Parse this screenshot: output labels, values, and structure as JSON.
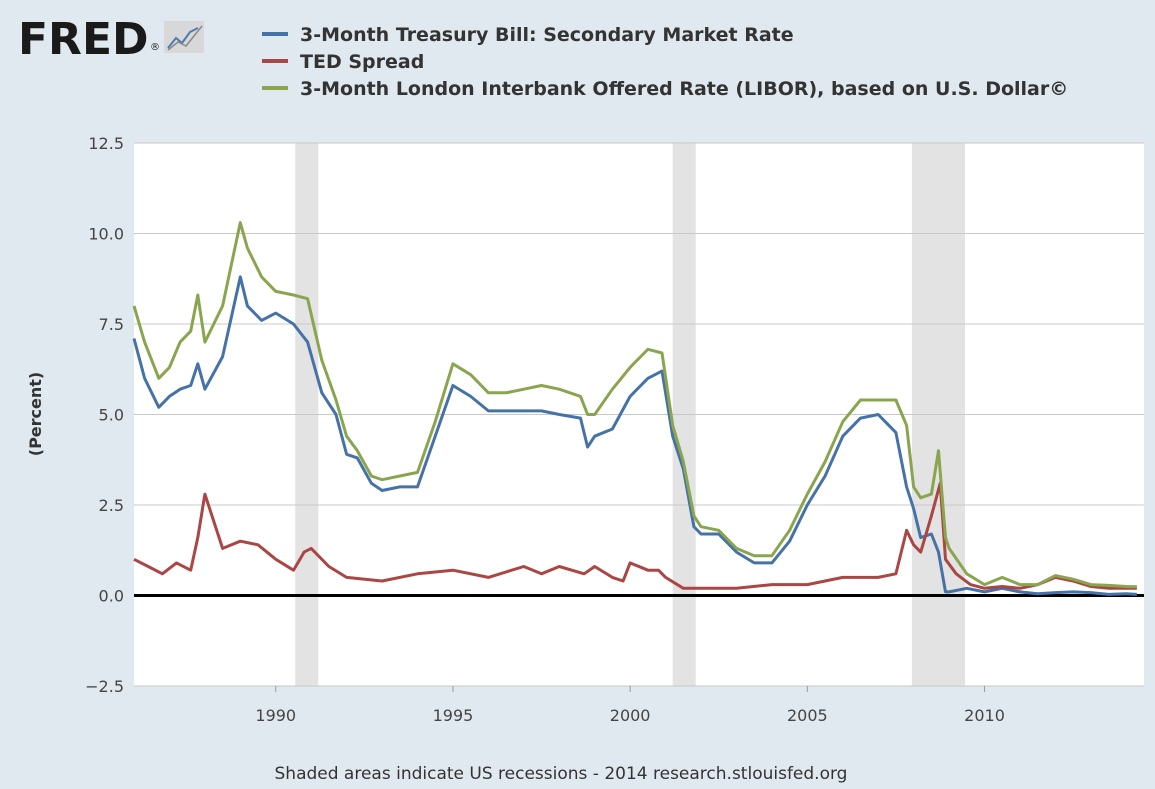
{
  "logo": {
    "text": "FRED",
    "registered": "®"
  },
  "footer": {
    "note": "Shaded areas indicate US recessions - 2014 research.stlouisfed.org"
  },
  "chart_data": {
    "type": "line",
    "ylabel": "(Percent)",
    "xlabel": "",
    "xlim": [
      1986.0,
      2014.5
    ],
    "ylim": [
      -2.5,
      12.5
    ],
    "yticks": [
      -2.5,
      0.0,
      2.5,
      5.0,
      7.5,
      10.0,
      12.5
    ],
    "ytick_labels": [
      "−2.5",
      "0.0",
      "2.5",
      "5.0",
      "7.5",
      "10.0",
      "12.5"
    ],
    "xticks": [
      1990,
      1995,
      2000,
      2005,
      2010
    ],
    "xtick_labels": [
      "1990",
      "1995",
      "2000",
      "2005",
      "2010"
    ],
    "grid": true,
    "legend_position": "top",
    "recessions": [
      [
        1990.55,
        1991.2
      ],
      [
        2001.2,
        2001.85
      ],
      [
        2007.95,
        2009.45
      ]
    ],
    "series": [
      {
        "name": "3-Month Treasury Bill: Secondary Market Rate",
        "color": "#4572a7",
        "x": [
          1986.0,
          1986.3,
          1986.7,
          1987.0,
          1987.3,
          1987.6,
          1987.8,
          1988.0,
          1988.5,
          1989.0,
          1989.2,
          1989.6,
          1990.0,
          1990.5,
          1990.9,
          1991.3,
          1991.7,
          1992.0,
          1992.3,
          1992.7,
          1993.0,
          1993.5,
          1994.0,
          1994.5,
          1995.0,
          1995.5,
          1996.0,
          1996.5,
          1997.0,
          1997.5,
          1998.0,
          1998.6,
          1998.8,
          1999.0,
          1999.5,
          2000.0,
          2000.5,
          2000.9,
          2001.2,
          2001.5,
          2001.8,
          2002.0,
          2002.5,
          2003.0,
          2003.5,
          2004.0,
          2004.5,
          2005.0,
          2005.5,
          2006.0,
          2006.5,
          2007.0,
          2007.5,
          2007.8,
          2008.0,
          2008.2,
          2008.5,
          2008.7,
          2008.9,
          2009.0,
          2009.5,
          2010.0,
          2010.5,
          2011.0,
          2011.5,
          2012.0,
          2012.5,
          2013.0,
          2013.5,
          2014.0,
          2014.3
        ],
        "y": [
          7.1,
          6.0,
          5.2,
          5.5,
          5.7,
          5.8,
          6.4,
          5.7,
          6.6,
          8.8,
          8.0,
          7.6,
          7.8,
          7.5,
          7.0,
          5.6,
          5.0,
          3.9,
          3.8,
          3.1,
          2.9,
          3.0,
          3.0,
          4.4,
          5.8,
          5.5,
          5.1,
          5.1,
          5.1,
          5.1,
          5.0,
          4.9,
          4.1,
          4.4,
          4.6,
          5.5,
          6.0,
          6.2,
          4.4,
          3.5,
          1.9,
          1.7,
          1.7,
          1.2,
          0.9,
          0.9,
          1.5,
          2.5,
          3.3,
          4.4,
          4.9,
          5.0,
          4.5,
          3.0,
          2.4,
          1.6,
          1.7,
          1.2,
          0.1,
          0.1,
          0.2,
          0.1,
          0.2,
          0.1,
          0.05,
          0.08,
          0.1,
          0.08,
          0.03,
          0.05,
          0.03
        ]
      },
      {
        "name": "TED Spread",
        "color": "#aa4643",
        "x": [
          1986.0,
          1986.4,
          1986.8,
          1987.2,
          1987.6,
          1987.8,
          1988.0,
          1988.5,
          1989.0,
          1989.5,
          1990.0,
          1990.5,
          1990.8,
          1991.0,
          1991.5,
          1992.0,
          1993.0,
          1994.0,
          1995.0,
          1996.0,
          1997.0,
          1997.5,
          1998.0,
          1998.7,
          1999.0,
          1999.5,
          1999.8,
          2000.0,
          2000.5,
          2000.8,
          2001.0,
          2001.5,
          2002.0,
          2003.0,
          2004.0,
          2005.0,
          2006.0,
          2007.0,
          2007.5,
          2007.8,
          2008.0,
          2008.2,
          2008.5,
          2008.75,
          2008.9,
          2009.2,
          2009.6,
          2010.0,
          2010.5,
          2011.0,
          2011.5,
          2012.0,
          2012.5,
          2013.0,
          2013.5,
          2014.0,
          2014.3
        ],
        "y": [
          1.0,
          0.8,
          0.6,
          0.9,
          0.7,
          1.6,
          2.8,
          1.3,
          1.5,
          1.4,
          1.0,
          0.7,
          1.2,
          1.3,
          0.8,
          0.5,
          0.4,
          0.6,
          0.7,
          0.5,
          0.8,
          0.6,
          0.8,
          0.6,
          0.8,
          0.5,
          0.4,
          0.9,
          0.7,
          0.7,
          0.5,
          0.2,
          0.2,
          0.2,
          0.3,
          0.3,
          0.5,
          0.5,
          0.6,
          1.8,
          1.4,
          1.2,
          2.2,
          3.1,
          1.0,
          0.6,
          0.3,
          0.2,
          0.25,
          0.2,
          0.3,
          0.5,
          0.4,
          0.25,
          0.2,
          0.2,
          0.2
        ]
      },
      {
        "name": "3-Month London Interbank Offered Rate (LIBOR), based on U.S. Dollar©",
        "color": "#89a54e",
        "x": [
          1986.0,
          1986.3,
          1986.7,
          1987.0,
          1987.3,
          1987.6,
          1987.8,
          1988.0,
          1988.5,
          1989.0,
          1989.2,
          1989.6,
          1990.0,
          1990.5,
          1990.9,
          1991.3,
          1991.7,
          1992.0,
          1992.3,
          1992.7,
          1993.0,
          1993.5,
          1994.0,
          1994.5,
          1995.0,
          1995.5,
          1996.0,
          1996.5,
          1997.0,
          1997.5,
          1998.0,
          1998.6,
          1998.8,
          1999.0,
          1999.5,
          2000.0,
          2000.5,
          2000.9,
          2001.2,
          2001.5,
          2001.8,
          2002.0,
          2002.5,
          2003.0,
          2003.5,
          2004.0,
          2004.5,
          2005.0,
          2005.5,
          2006.0,
          2006.5,
          2007.0,
          2007.5,
          2007.8,
          2008.0,
          2008.2,
          2008.5,
          2008.7,
          2008.9,
          2009.0,
          2009.5,
          2010.0,
          2010.5,
          2011.0,
          2011.5,
          2012.0,
          2012.5,
          2013.0,
          2013.5,
          2014.0,
          2014.3
        ],
        "y": [
          8.0,
          7.0,
          6.0,
          6.3,
          7.0,
          7.3,
          8.3,
          7.0,
          8.0,
          10.3,
          9.6,
          8.8,
          8.4,
          8.3,
          8.2,
          6.5,
          5.4,
          4.4,
          4.0,
          3.3,
          3.2,
          3.3,
          3.4,
          4.8,
          6.4,
          6.1,
          5.6,
          5.6,
          5.7,
          5.8,
          5.7,
          5.5,
          5.0,
          5.0,
          5.7,
          6.3,
          6.8,
          6.7,
          4.7,
          3.7,
          2.2,
          1.9,
          1.8,
          1.3,
          1.1,
          1.1,
          1.8,
          2.8,
          3.7,
          4.8,
          5.4,
          5.4,
          5.4,
          4.7,
          3.0,
          2.7,
          2.8,
          4.0,
          1.6,
          1.3,
          0.6,
          0.3,
          0.5,
          0.3,
          0.3,
          0.55,
          0.45,
          0.3,
          0.28,
          0.25,
          0.24
        ]
      }
    ]
  }
}
